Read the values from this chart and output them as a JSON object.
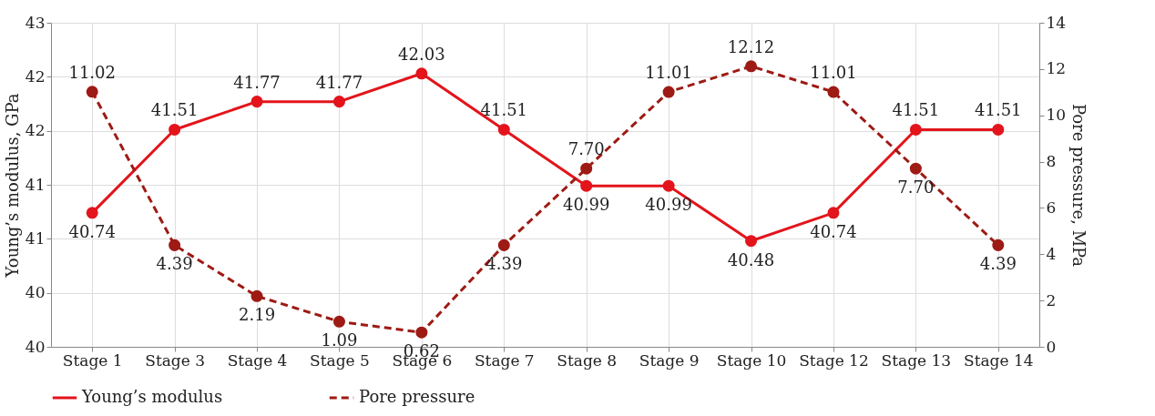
{
  "chart_data": {
    "type": "line",
    "categories": [
      "Stage 1",
      "Stage 3",
      "Stage 4",
      "Stage 5",
      "Stage 6",
      "Stage 7",
      "Stage 8",
      "Stage 9",
      "Stage 10",
      "Stage 12",
      "Stage 13",
      "Stage 14"
    ],
    "ylabel": "Young’s modulus, GPa",
    "y2label": "Pore pressure, MPa",
    "ylim": [
      39.5,
      42.5
    ],
    "yticks": [
      {
        "value": 39.5,
        "label": "40"
      },
      {
        "value": 40,
        "label": "40"
      },
      {
        "value": 40.5,
        "label": "41"
      },
      {
        "value": 41,
        "label": "41"
      },
      {
        "value": 41.5,
        "label": "42"
      },
      {
        "value": 42,
        "label": "42"
      },
      {
        "value": 42.5,
        "label": "43"
      }
    ],
    "y2lim": [
      0,
      14
    ],
    "y2ticks": [
      0,
      2,
      4,
      6,
      8,
      10,
      12,
      14
    ],
    "series": [
      {
        "name": "Young’s modulus",
        "color": "#e3141b",
        "line_style": "solid",
        "values": [
          40.74,
          41.51,
          41.77,
          41.77,
          42.03,
          41.51,
          40.99,
          40.99,
          40.48,
          40.74,
          41.51,
          41.51
        ],
        "value_labels": [
          "40.74",
          "41.51",
          "41.77",
          "41.77",
          "42.03",
          "41.51",
          "40.99",
          "40.99",
          "40.48",
          "40.74",
          "41.51",
          "41.51"
        ]
      },
      {
        "name": "Pore pressure",
        "color": "#9e1a14",
        "line_style": "dashed",
        "axis": "y2",
        "values": [
          11.02,
          4.39,
          2.19,
          1.09,
          0.62,
          4.39,
          7.7,
          11.01,
          12.12,
          11.01,
          7.7,
          4.39
        ],
        "value_labels": [
          "11.02",
          "4.39",
          "2.19",
          "1.09",
          "0.62",
          "4.39",
          "7.70",
          "11.01",
          "12.12",
          "11.01",
          "7.70",
          "4.39"
        ]
      }
    ],
    "grid": true,
    "legend": "bottom",
    "marker": "circle"
  }
}
